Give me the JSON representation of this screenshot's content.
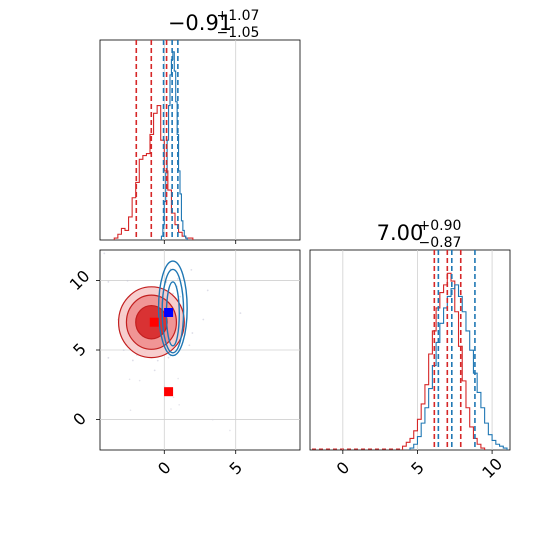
{
  "chart_data": {
    "type": "corner",
    "panels": {
      "top_left_hist": {
        "title_main": "−0.91",
        "title_sup": "+1.07",
        "title_sub": "−1.05",
        "xlim": [
          -4.5,
          9.5
        ],
        "grid": true,
        "series": [
          {
            "color": "#d62728",
            "bin_edges": [
              -3.5,
              -3.25,
              -3.0,
              -2.75,
              -2.5,
              -2.25,
              -2.0,
              -1.75,
              -1.5,
              -1.25,
              -1.0,
              -0.75,
              -0.5,
              -0.25,
              0.0,
              0.25,
              0.5,
              0.75,
              1.0,
              1.25,
              1.5,
              1.75,
              2.0
            ],
            "counts": [
              0.01,
              0.03,
              0.06,
              0.05,
              0.12,
              0.22,
              0.3,
              0.42,
              0.44,
              0.45,
              0.55,
              0.66,
              0.7,
              0.52,
              0.36,
              0.26,
              0.14,
              0.08,
              0.04,
              0.02,
              0.01,
              0.01
            ],
            "quantiles": [
              -1.96,
              -0.91,
              0.16
            ]
          },
          {
            "color": "#1f77b4",
            "bin_edges": [
              -0.2,
              -0.1,
              0.0,
              0.1,
              0.2,
              0.3,
              0.4,
              0.5,
              0.6,
              0.7,
              0.8,
              0.9,
              1.0,
              1.1,
              1.2,
              1.3,
              1.4,
              1.5,
              1.6
            ],
            "counts": [
              0.02,
              0.08,
              0.2,
              0.35,
              0.52,
              0.7,
              0.86,
              0.94,
              0.98,
              0.88,
              0.72,
              0.55,
              0.36,
              0.24,
              0.1,
              0.05,
              0.02,
              0.01
            ],
            "quantiles": [
              -0.05,
              0.55,
              0.95
            ]
          }
        ]
      },
      "scatter": {
        "xlim": [
          -4.5,
          9.5
        ],
        "ylim": [
          -2.2,
          12.2
        ],
        "xticks": [
          0,
          5
        ],
        "yticks": [
          0,
          5,
          10
        ],
        "yticklabels": [
          "0",
          "5",
          "10"
        ],
        "grid": true,
        "red_contours": [
          {
            "cx": -0.9,
            "cy": 7.0,
            "rx": 1.1,
            "ry": 1.2
          },
          {
            "cx": -0.9,
            "cy": 7.0,
            "rx": 1.75,
            "ry": 1.95
          },
          {
            "cx": -0.9,
            "cy": 7.0,
            "rx": 2.3,
            "ry": 2.55
          }
        ],
        "blue_contours": [
          {
            "cx": 0.6,
            "cy": 7.6,
            "rx": 0.45,
            "ry": 2.3
          },
          {
            "cx": 0.6,
            "cy": 7.8,
            "rx": 0.75,
            "ry": 3.0
          },
          {
            "cx": 0.6,
            "cy": 8.0,
            "rx": 1.0,
            "ry": 3.4
          }
        ],
        "markers": [
          {
            "x": -0.7,
            "y": 7.0,
            "color": "#ff0000"
          },
          {
            "x": 0.3,
            "y": 7.7,
            "color": "#0000ff"
          },
          {
            "x": 0.3,
            "y": 2.0,
            "color": "#ff0000"
          }
        ]
      },
      "bottom_right_hist": {
        "title_main": "7.00",
        "title_sup": "+0.90",
        "title_sub": "−0.87",
        "xlim": [
          -2.2,
          11.2
        ],
        "xticks": [
          0,
          5,
          10
        ],
        "xticklabels": [
          "0",
          "5",
          "10"
        ],
        "grid": true,
        "series": [
          {
            "color": "#d62728",
            "bin_edges": [
              4.0,
              4.25,
              4.5,
              4.75,
              5.0,
              5.25,
              5.5,
              5.75,
              6.0,
              6.25,
              6.5,
              6.75,
              7.0,
              7.25,
              7.5,
              7.75,
              8.0,
              8.25,
              8.5,
              8.75,
              9.0,
              9.25,
              9.5
            ],
            "counts": [
              0.02,
              0.04,
              0.06,
              0.1,
              0.16,
              0.24,
              0.34,
              0.5,
              0.62,
              0.74,
              0.82,
              0.86,
              0.92,
              0.88,
              0.72,
              0.54,
              0.36,
              0.22,
              0.12,
              0.06,
              0.03,
              0.01
            ],
            "quantiles": [
              6.13,
              7.0,
              7.9
            ]
          },
          {
            "color": "#1f77b4",
            "bin_edges": [
              4.5,
              4.75,
              5.0,
              5.25,
              5.5,
              5.75,
              6.0,
              6.25,
              6.5,
              6.75,
              7.0,
              7.25,
              7.5,
              7.75,
              8.0,
              8.25,
              8.5,
              8.75,
              9.0,
              9.25,
              9.5,
              9.75,
              10.0,
              10.25,
              10.5,
              10.75,
              11.0
            ],
            "counts": [
              0.01,
              0.03,
              0.07,
              0.14,
              0.22,
              0.32,
              0.44,
              0.56,
              0.66,
              0.74,
              0.8,
              0.84,
              0.86,
              0.8,
              0.72,
              0.62,
              0.52,
              0.4,
              0.3,
              0.22,
              0.14,
              0.08,
              0.05,
              0.03,
              0.02,
              0.01
            ],
            "quantiles": [
              6.4,
              7.3,
              8.85
            ]
          }
        ]
      }
    }
  }
}
